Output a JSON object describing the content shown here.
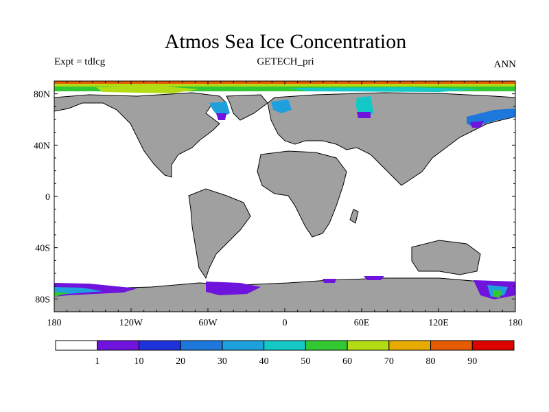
{
  "title": "Atmos Sea Ice Concentration",
  "subtitle_left": "Expt = tdlcg",
  "subtitle_center": "GETECH_pri",
  "subtitle_right": "ANN",
  "colors": {
    "land": "#a0a0a0",
    "ocean": "#ffffff",
    "coast": "#000000"
  },
  "chart_data": {
    "type": "heatmap",
    "xlim": [
      -180,
      180
    ],
    "ylim": [
      -90,
      90
    ],
    "x_ticks": [
      {
        "value": -180,
        "label": "180"
      },
      {
        "value": -120,
        "label": "120W"
      },
      {
        "value": -60,
        "label": "60W"
      },
      {
        "value": 0,
        "label": "0"
      },
      {
        "value": 60,
        "label": "60E"
      },
      {
        "value": 120,
        "label": "120E"
      },
      {
        "value": 180,
        "label": "180"
      }
    ],
    "y_ticks": [
      {
        "value": 80,
        "label": "80N"
      },
      {
        "value": 40,
        "label": "40N"
      },
      {
        "value": 0,
        "label": "0"
      },
      {
        "value": -40,
        "label": "40S"
      },
      {
        "value": -80,
        "label": "80S"
      }
    ],
    "colorbar": {
      "levels": [
        "1",
        "10",
        "20",
        "30",
        "40",
        "50",
        "60",
        "70",
        "80",
        "90"
      ],
      "colors": [
        "#ffffff",
        "#6e14dc",
        "#1e32dc",
        "#1e78dc",
        "#1ea0dc",
        "#14c8c8",
        "#32c832",
        "#b4dc14",
        "#e6aa00",
        "#e65a00",
        "#dc0000"
      ]
    }
  }
}
